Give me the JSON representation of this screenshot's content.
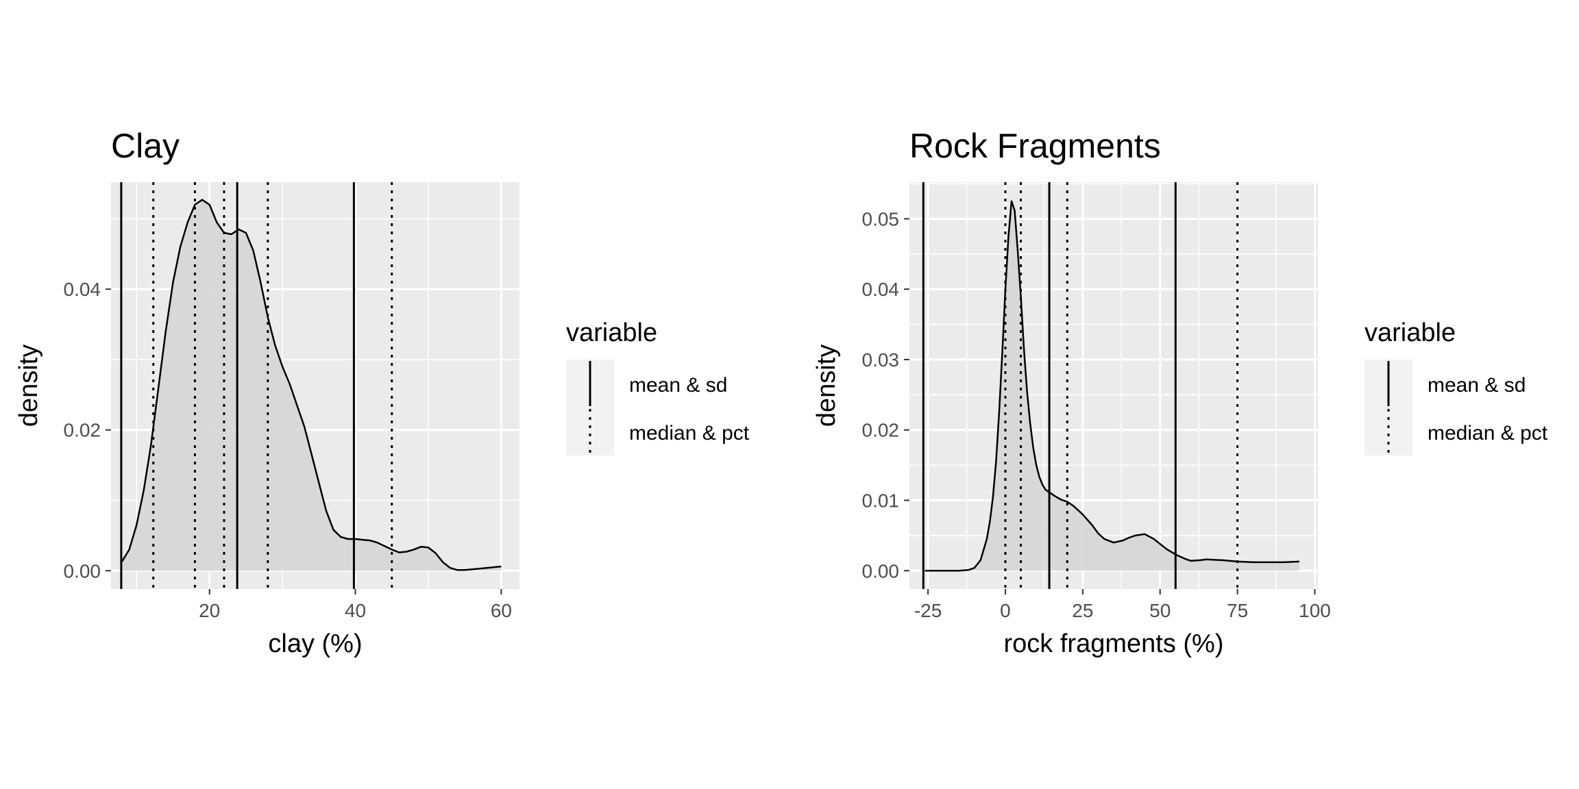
{
  "chart_data": [
    {
      "type": "area",
      "title": "Clay",
      "xlabel": "clay (%)",
      "ylabel": "density",
      "xlim": [
        6.5,
        62.5
      ],
      "ylim": [
        -0.0026,
        0.0552
      ],
      "x_ticks": [
        20,
        40,
        60
      ],
      "x_tick_labels": [
        "20",
        "40",
        "60"
      ],
      "y_ticks": [
        0,
        0.02,
        0.04
      ],
      "y_tick_labels": [
        "0.00",
        "0.02",
        "0.04"
      ],
      "grid": true,
      "series": [
        {
          "x": [
            8,
            9,
            10,
            11,
            12,
            13,
            14,
            15,
            16,
            17,
            18,
            19,
            20,
            21,
            22,
            23,
            24,
            25,
            26,
            27,
            28,
            29,
            30,
            31,
            32,
            33,
            34,
            35,
            36,
            37,
            38,
            39,
            40,
            41,
            42,
            43,
            44,
            45,
            46,
            47,
            48,
            49,
            50,
            51,
            52,
            53,
            54,
            55,
            56,
            57,
            58,
            59,
            60
          ],
          "y": [
            0.0013,
            0.003,
            0.0065,
            0.0115,
            0.018,
            0.026,
            0.034,
            0.041,
            0.046,
            0.0495,
            0.052,
            0.0527,
            0.052,
            0.0495,
            0.048,
            0.0478,
            0.0485,
            0.048,
            0.0455,
            0.041,
            0.036,
            0.032,
            0.029,
            0.0265,
            0.0235,
            0.0205,
            0.0165,
            0.0125,
            0.0085,
            0.0058,
            0.0048,
            0.0045,
            0.0045,
            0.0044,
            0.0043,
            0.004,
            0.0035,
            0.003,
            0.0026,
            0.0027,
            0.003,
            0.0034,
            0.0033,
            0.0025,
            0.0012,
            0.0004,
            0.0001,
            0.0001,
            0.0002,
            0.0003,
            0.0004,
            0.0005,
            0.0006
          ]
        }
      ],
      "reference_lines": [
        {
          "variable": "mean & sd",
          "style": "solid",
          "x": [
            7.9,
            23.8,
            39.8
          ]
        },
        {
          "variable": "median & pct",
          "style": "dotted",
          "x": [
            12.3,
            18,
            22,
            28,
            45
          ]
        }
      ],
      "legend": {
        "title": "variable",
        "position": "right",
        "items": [
          "mean & sd",
          "median & pct"
        ]
      }
    },
    {
      "type": "area",
      "title": "Rock Fragments",
      "xlabel": "rock fragments (%)",
      "ylabel": "density",
      "xlim": [
        -31,
        101
      ],
      "ylim": [
        -0.0026,
        0.0552
      ],
      "x_ticks": [
        -25,
        0,
        25,
        50,
        75,
        100
      ],
      "x_tick_labels": [
        "-25",
        "0",
        "25",
        "50",
        "75",
        "100"
      ],
      "y_ticks": [
        0,
        0.01,
        0.02,
        0.03,
        0.04,
        0.05
      ],
      "y_tick_labels": [
        "0.00",
        "0.01",
        "0.02",
        "0.03",
        "0.04",
        "0.05"
      ],
      "grid": true,
      "series": [
        {
          "x": [
            -26,
            -20,
            -15,
            -12,
            -10,
            -8,
            -6,
            -5,
            -4,
            -3,
            -2,
            -1,
            0,
            1,
            2,
            3,
            4,
            5,
            6,
            7,
            8,
            9,
            10,
            11,
            12,
            13,
            14,
            16,
            18,
            20,
            22,
            25,
            28,
            30,
            32,
            35,
            38,
            40,
            42,
            45,
            48,
            50,
            52,
            55,
            58,
            60,
            63,
            65,
            70,
            75,
            80,
            85,
            90,
            95
          ],
          "y": [
            0,
            0,
            0,
            0.0001,
            0.0004,
            0.0015,
            0.0045,
            0.007,
            0.0105,
            0.0155,
            0.0225,
            0.031,
            0.04,
            0.0475,
            0.0525,
            0.0512,
            0.0455,
            0.039,
            0.0315,
            0.0255,
            0.021,
            0.0175,
            0.015,
            0.0133,
            0.0122,
            0.0115,
            0.0112,
            0.0106,
            0.0101,
            0.0098,
            0.0092,
            0.008,
            0.0065,
            0.0053,
            0.0045,
            0.004,
            0.0043,
            0.0047,
            0.005,
            0.0052,
            0.0045,
            0.0038,
            0.0031,
            0.0023,
            0.0017,
            0.0014,
            0.0015,
            0.0016,
            0.0015,
            0.0013,
            0.0012,
            0.0012,
            0.0012,
            0.0013
          ]
        }
      ],
      "reference_lines": [
        {
          "variable": "mean & sd",
          "style": "solid",
          "x": [
            -26.5,
            14.2,
            55
          ]
        },
        {
          "variable": "median & pct",
          "style": "dotted",
          "x": [
            0,
            5,
            20,
            75
          ]
        }
      ],
      "legend": {
        "title": "variable",
        "position": "right",
        "items": [
          "mean & sd",
          "median & pct"
        ]
      }
    }
  ],
  "colors": {
    "panel_background": "#ebebeb",
    "grid_line": "#ffffff",
    "density_fill": "#d6d6d6",
    "line": "#000000",
    "tick_label": "#4d4d4d",
    "legend_key_background": "#f2f2f2"
  }
}
